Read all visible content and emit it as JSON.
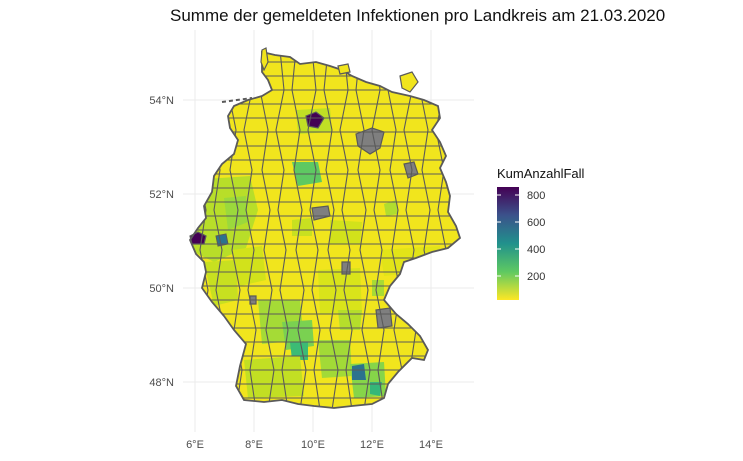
{
  "title": "Summe der gemeldeten Infektionen pro Landkreis am 21.03.2020",
  "axes": {
    "x_ticks": [
      "6°E",
      "8°E",
      "10°E",
      "12°E",
      "14°E"
    ],
    "y_ticks": [
      "54°N",
      "52°N",
      "50°N",
      "48°N"
    ]
  },
  "legend": {
    "title": "KumAnzahlFall",
    "labels": [
      "800",
      "600",
      "400",
      "200"
    ],
    "range": [
      1,
      880
    ],
    "colors": [
      "#fde725",
      "#5ec962",
      "#21918c",
      "#3b528b",
      "#440154"
    ]
  },
  "colors": {
    "border": "#5a5a5a",
    "missing": "#7f7f7f",
    "grid": "#ebebeb"
  }
}
